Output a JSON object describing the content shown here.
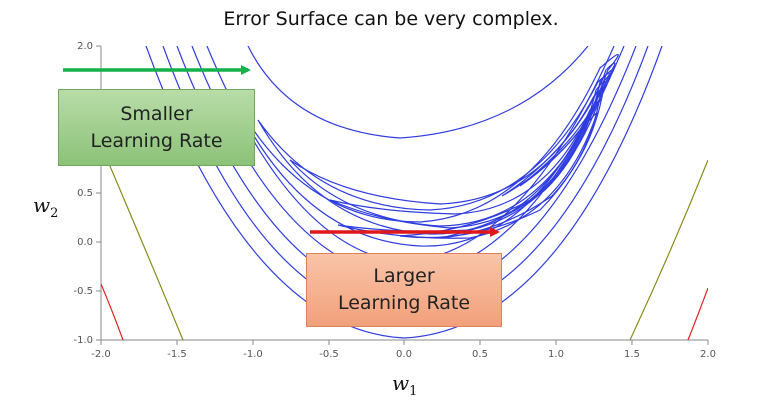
{
  "title": "Error Surface can be very complex.",
  "axes": {
    "x_label": "w",
    "x_sub": "1",
    "y_label": "w",
    "y_sub": "2",
    "x_ticks": [
      "-2.0",
      "-1.5",
      "-1.0",
      "-0.5",
      "0.0",
      "0.5",
      "1.0",
      "1.5",
      "2.0"
    ],
    "y_ticks": [
      "2.0",
      "0.5",
      "0.0",
      "-0.5",
      "-1.0"
    ]
  },
  "callouts": {
    "small_line1": "Smaller",
    "small_line2": "Learning Rate",
    "large_line1": "Larger",
    "large_line2": "Learning Rate"
  },
  "colors": {
    "contour_blue": "#2f3de0",
    "contour_olive": "#8a8a1e",
    "contour_red": "#e02020",
    "arrow_green": "#14b04a",
    "arrow_red": "#e01818",
    "callout_green": "#a3d18f",
    "callout_orange": "#f5b08f"
  }
}
